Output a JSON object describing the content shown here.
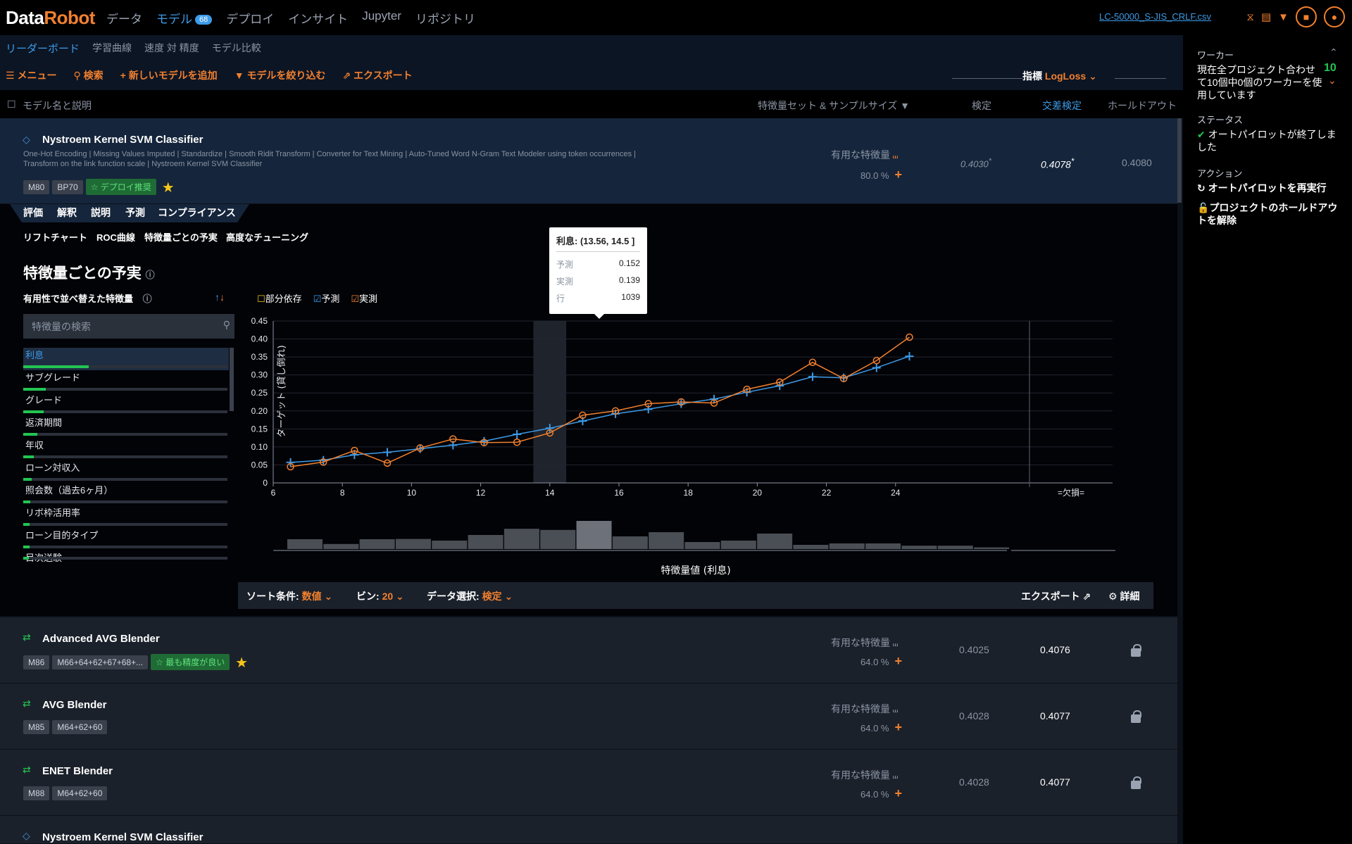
{
  "topbar": {
    "logo_a": "Data",
    "logo_b": "Robot",
    "nav": [
      "データ",
      "モデル",
      "デプロイ",
      "インサイト",
      "Jupyter",
      "リポジトリ"
    ],
    "model_count": "68",
    "project_name": "LC-50000_S-JIS_CRLF.csv"
  },
  "subnav": [
    "リーダーボード",
    "学習曲線",
    "速度 対 精度",
    "モデル比較"
  ],
  "toolbar": {
    "menu": "メニュー",
    "search": "検索",
    "add_model": "新しいモデルを追加",
    "filter": "モデルを絞り込む",
    "export": "エクスポート",
    "metric_label": "指標",
    "metric_value": "LogLoss"
  },
  "columns": {
    "name": "モデル名と説明",
    "featureset": "特徴量セット & サンプルサイズ",
    "validation": "検定",
    "cv": "交差検定",
    "holdout": "ホールドアウト"
  },
  "model_main": {
    "title": "Nystroem Kernel SVM Classifier",
    "desc1": "One-Hot Encoding | Missing Values Imputed | Standardize | Smooth Ridit Transform | Converter for Text Mining | Auto-Tuned Word N-Gram Text Modeler using token occurrences |",
    "desc2": "Transform on the link function scale | Nystroem Kernel SVM Classifier",
    "tags": [
      "M80",
      "BP70"
    ],
    "badge": "デプロイ推奨",
    "feature_label": "有用な特徴量",
    "sample": "80.0 %",
    "validation": "0.4030",
    "cv": "0.4078",
    "holdout": "0.4080",
    "star": "*"
  },
  "eval_tabs": [
    "評価",
    "解釈",
    "説明",
    "予測",
    "コンプライアンス"
  ],
  "sub_tabs": [
    "リフトチャート",
    "ROC曲線",
    "特徴量ごとの予実",
    "高度なチューニング"
  ],
  "fe": {
    "title": "特徴量ごとの予実",
    "sorted_label": "有用性で並べ替えた特徴量",
    "search_placeholder": "特徴量の検索",
    "features": [
      {
        "name": "利息",
        "impact": 0.3
      },
      {
        "name": "サブグレード",
        "impact": 0.09
      },
      {
        "name": "グレード",
        "impact": 0.08
      },
      {
        "name": "返済期間",
        "impact": 0.05
      },
      {
        "name": "年収",
        "impact": 0.03
      },
      {
        "name": "ローン対収入",
        "impact": 0.02
      },
      {
        "name": "照会数（過去6ヶ月）",
        "impact": 0.015
      },
      {
        "name": "リボ枠活用率",
        "impact": 0.012
      },
      {
        "name": "ローン目的タイプ",
        "impact": 0.01
      },
      {
        "name": "目次送験",
        "impact": 0.008
      }
    ],
    "legend": {
      "partial": "部分依存",
      "pred": "予測",
      "actual": "実測"
    }
  },
  "chart_data": {
    "type": "line",
    "ylabel": "ターゲット (貸し倒れ)",
    "xlabel": "特徴量値 (利息)",
    "xlim": [
      6,
      26
    ],
    "ylim": [
      0,
      0.45
    ],
    "xticks": [
      6,
      8,
      10,
      12,
      14,
      16,
      18,
      20,
      22,
      24
    ],
    "yticks": [
      0,
      0.05,
      0.1,
      0.15,
      0.2,
      0.25,
      0.3,
      0.35,
      0.4,
      0.45
    ],
    "missing_label": "=欠損=",
    "x": [
      6.5,
      7.45,
      8.35,
      9.3,
      10.25,
      11.2,
      12.1,
      13.05,
      14.0,
      14.95,
      15.9,
      16.85,
      17.8,
      18.75,
      19.7,
      20.65,
      21.6,
      22.5,
      23.45,
      24.4
    ],
    "series": [
      {
        "name": "予測",
        "color": "#3d9be9",
        "values": [
          0.057,
          0.063,
          0.078,
          0.085,
          0.095,
          0.105,
          0.116,
          0.135,
          0.152,
          0.172,
          0.192,
          0.205,
          0.22,
          0.233,
          0.252,
          0.27,
          0.295,
          0.292,
          0.32,
          0.352
        ]
      },
      {
        "name": "実測",
        "color": "#f2802e",
        "values": [
          0.045,
          0.058,
          0.09,
          0.055,
          0.097,
          0.122,
          0.112,
          0.113,
          0.139,
          0.188,
          0.2,
          0.22,
          0.225,
          0.222,
          0.26,
          0.28,
          0.335,
          0.29,
          0.34,
          0.405
        ]
      }
    ],
    "histogram": [
      0.35,
      0.18,
      0.35,
      0.36,
      0.3,
      0.5,
      0.72,
      0.68,
      1.0,
      0.45,
      0.6,
      0.25,
      0.3,
      0.55,
      0.15,
      0.2,
      0.2,
      0.12,
      0.12,
      0.06
    ],
    "highlight_bin": 8
  },
  "tooltip": {
    "title": "利息: (13.56, 14.5 ]",
    "rows": [
      {
        "label": "予測",
        "value": "0.152"
      },
      {
        "label": "実測",
        "value": "0.139"
      },
      {
        "label": "行",
        "value": "1039"
      }
    ]
  },
  "bottombar": {
    "sort_label": "ソート条件:",
    "sort_value": "数値",
    "bin_label": "ビン:",
    "bin_value": "20",
    "data_label": "データ選択:",
    "data_value": "検定",
    "export": "エクスポート",
    "detail": "詳細"
  },
  "other_models": [
    {
      "title": "Advanced AVG Blender",
      "tags": [
        "M86",
        "M66+64+62+67+68+..."
      ],
      "badge": "最も精度が良い",
      "sample": "64.0 %",
      "validation": "0.4025",
      "cv": "0.4076"
    },
    {
      "title": "AVG Blender",
      "tags": [
        "M85",
        "M64+62+60"
      ],
      "badge": "",
      "sample": "64.0 %",
      "validation": "0.4028",
      "cv": "0.4077"
    },
    {
      "title": "ENET Blender",
      "tags": [
        "M88",
        "M64+62+60"
      ],
      "badge": "",
      "sample": "64.0 %",
      "validation": "0.4028",
      "cv": "0.4077"
    },
    {
      "title": "Nystroem Kernel SVM Classifier"
    }
  ],
  "right": {
    "worker_label": "ワーカー",
    "worker_text": "現在全プロジェクト合わせて10個中0個のワーカーを使用しています",
    "worker_count": "10",
    "status_label": "ステータス",
    "status_text": "オートパイロットが終了しました",
    "action_label": "アクション",
    "action1": "オートパイロットを再実行",
    "action2": "プロジェクトのホールドアウトを解除"
  }
}
